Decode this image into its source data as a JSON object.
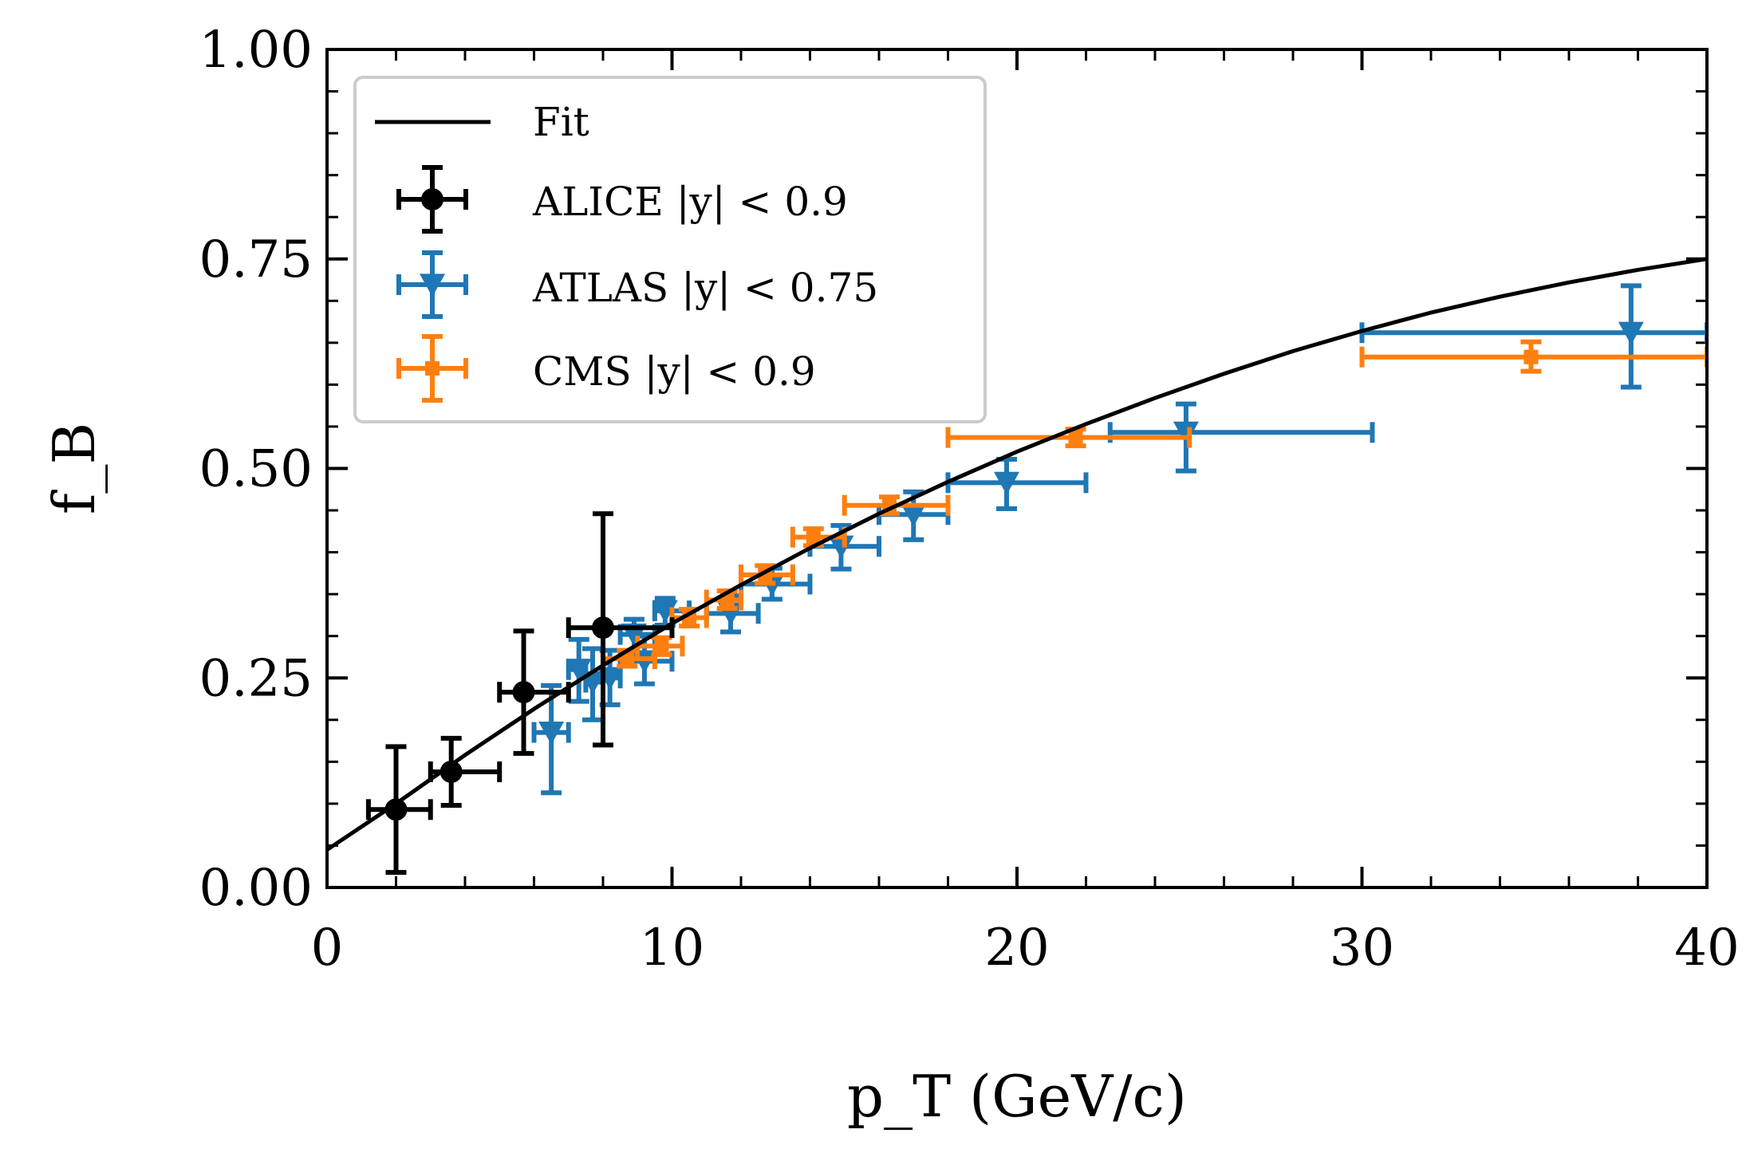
{
  "chart_data": {
    "type": "scatter",
    "xlabel": "p_T (GeV/c)",
    "ylabel": "f_B",
    "xlim": [
      0,
      40
    ],
    "ylim": [
      0,
      1
    ],
    "x_ticks": [
      "0",
      "10",
      "20",
      "30",
      "40"
    ],
    "y_ticks": [
      "0.00",
      "0.25",
      "0.50",
      "0.75",
      "1.00"
    ],
    "grid": false,
    "legend_position": "top-left",
    "fit": {
      "label": "Fit",
      "color": "#000000",
      "x": [
        0,
        2,
        4,
        6,
        8,
        10,
        12,
        14,
        16,
        18,
        20,
        22,
        24,
        26,
        28,
        30,
        32,
        34,
        36,
        38,
        40
      ],
      "y": [
        0.045,
        0.1,
        0.158,
        0.213,
        0.265,
        0.315,
        0.361,
        0.405,
        0.446,
        0.484,
        0.52,
        0.553,
        0.584,
        0.613,
        0.64,
        0.664,
        0.686,
        0.705,
        0.722,
        0.737,
        0.75
      ]
    },
    "series": [
      {
        "name": "ALICE |y| < 0.9",
        "color": "#000000",
        "marker": "circle",
        "points": [
          {
            "x": 2.0,
            "xlo": 1.2,
            "xhi": 3.0,
            "y": 0.093,
            "ylo": 0.018,
            "yhi": 0.168
          },
          {
            "x": 3.6,
            "xlo": 3.0,
            "xhi": 5.0,
            "y": 0.138,
            "ylo": 0.098,
            "yhi": 0.178
          },
          {
            "x": 5.7,
            "xlo": 5.0,
            "xhi": 7.0,
            "y": 0.233,
            "ylo": 0.16,
            "yhi": 0.306
          },
          {
            "x": 8.0,
            "xlo": 7.0,
            "xhi": 10.0,
            "y": 0.31,
            "ylo": 0.17,
            "yhi": 0.446
          }
        ]
      },
      {
        "name": "ATLAS |y| < 0.75",
        "color": "#1f77b4",
        "marker": "triangle-down",
        "points": [
          {
            "x": 6.5,
            "xlo": 6.0,
            "xhi": 7.0,
            "y": 0.185,
            "ylo": 0.113,
            "yhi": 0.241
          },
          {
            "x": 7.3,
            "xlo": 7.0,
            "xhi": 7.5,
            "y": 0.26,
            "ylo": 0.222,
            "yhi": 0.296
          },
          {
            "x": 7.7,
            "xlo": 7.5,
            "xhi": 8.0,
            "y": 0.245,
            "ylo": 0.2,
            "yhi": 0.285
          },
          {
            "x": 8.2,
            "xlo": 8.0,
            "xhi": 8.5,
            "y": 0.25,
            "ylo": 0.218,
            "yhi": 0.283
          },
          {
            "x": 8.9,
            "xlo": 8.5,
            "xhi": 9.5,
            "y": 0.302,
            "ylo": 0.275,
            "yhi": 0.32
          },
          {
            "x": 9.2,
            "xlo": 8.5,
            "xhi": 10.0,
            "y": 0.27,
            "ylo": 0.243,
            "yhi": 0.3
          },
          {
            "x": 9.8,
            "xlo": 9.5,
            "xhi": 10.5,
            "y": 0.33,
            "ylo": 0.313,
            "yhi": 0.345
          },
          {
            "x": 11.7,
            "xlo": 11.0,
            "xhi": 12.5,
            "y": 0.327,
            "ylo": 0.305,
            "yhi": 0.348
          },
          {
            "x": 12.9,
            "xlo": 12.0,
            "xhi": 14.0,
            "y": 0.362,
            "ylo": 0.344,
            "yhi": 0.381
          },
          {
            "x": 14.9,
            "xlo": 14.0,
            "xhi": 16.0,
            "y": 0.407,
            "ylo": 0.38,
            "yhi": 0.432
          },
          {
            "x": 17.0,
            "xlo": 16.0,
            "xhi": 18.0,
            "y": 0.445,
            "ylo": 0.415,
            "yhi": 0.472
          },
          {
            "x": 19.7,
            "xlo": 18.0,
            "xhi": 22.0,
            "y": 0.483,
            "ylo": 0.452,
            "yhi": 0.511
          },
          {
            "x": 24.9,
            "xlo": 22.7,
            "xhi": 30.3,
            "y": 0.543,
            "ylo": 0.497,
            "yhi": 0.577
          },
          {
            "x": 37.8,
            "xlo": 30.0,
            "xhi": 40.0,
            "y": 0.662,
            "ylo": 0.597,
            "yhi": 0.718
          }
        ]
      },
      {
        "name": "CMS |y| < 0.9",
        "color": "#ff7f0e",
        "marker": "square",
        "points": [
          {
            "x": 8.7,
            "xlo": 8.0,
            "xhi": 9.5,
            "y": 0.273,
            "ylo": 0.264,
            "yhi": 0.283
          },
          {
            "x": 9.7,
            "xlo": 9.0,
            "xhi": 10.3,
            "y": 0.288,
            "ylo": 0.278,
            "yhi": 0.298
          },
          {
            "x": 10.5,
            "xlo": 10.0,
            "xhi": 11.0,
            "y": 0.322,
            "ylo": 0.312,
            "yhi": 0.332
          },
          {
            "x": 11.6,
            "xlo": 11.0,
            "xhi": 12.0,
            "y": 0.343,
            "ylo": 0.333,
            "yhi": 0.354
          },
          {
            "x": 12.7,
            "xlo": 12.0,
            "xhi": 13.5,
            "y": 0.373,
            "ylo": 0.363,
            "yhi": 0.384
          },
          {
            "x": 14.1,
            "xlo": 13.5,
            "xhi": 15.0,
            "y": 0.418,
            "ylo": 0.408,
            "yhi": 0.428
          },
          {
            "x": 16.3,
            "xlo": 15.0,
            "xhi": 18.0,
            "y": 0.456,
            "ylo": 0.446,
            "yhi": 0.466
          },
          {
            "x": 21.7,
            "xlo": 18.0,
            "xhi": 25.0,
            "y": 0.537,
            "ylo": 0.527,
            "yhi": 0.547
          },
          {
            "x": 34.9,
            "xlo": 30.0,
            "xhi": 40.0,
            "y": 0.633,
            "ylo": 0.616,
            "yhi": 0.651
          }
        ]
      }
    ]
  }
}
